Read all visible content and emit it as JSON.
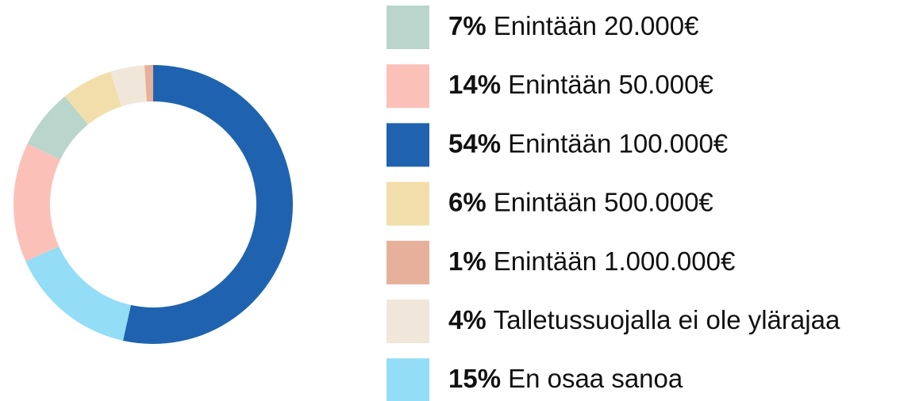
{
  "chart_data": {
    "type": "donut",
    "categories": [
      "Enintään 20.000€",
      "Enintään 50.000€",
      "Enintään 100.000€",
      "Enintään 500.000€",
      "Enintään 1.000.000€",
      "Talletussuojalla ei ole ylärajaa",
      "En osaa sanoa"
    ],
    "values": [
      7,
      14,
      54,
      6,
      1,
      4,
      15
    ],
    "value_labels": [
      "7%",
      "14%",
      "54%",
      "6%",
      "1%",
      "4%",
      "15%"
    ],
    "colors": [
      "#b9d5cc",
      "#fbc1b9",
      "#1f63b0",
      "#f2deaa",
      "#e6b09a",
      "#f1e6da",
      "#93ddf6"
    ],
    "legend": "right"
  }
}
